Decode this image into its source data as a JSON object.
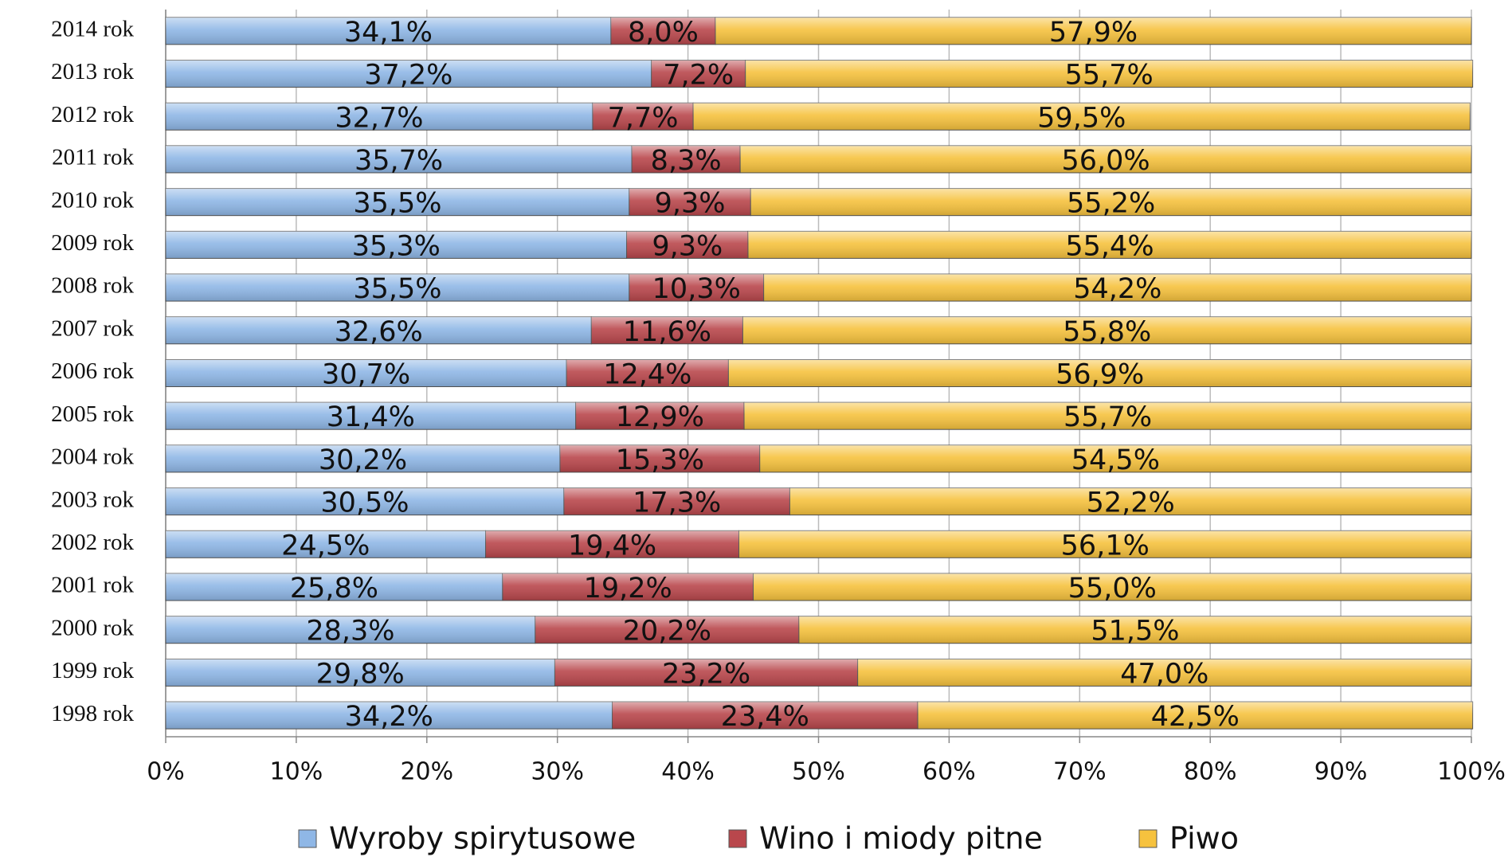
{
  "chart_data": {
    "type": "bar",
    "orientation": "horizontal",
    "stacked": true,
    "categories": [
      "2014 rok",
      "2013 rok",
      "2012 rok",
      "2011 rok",
      "2010 rok",
      "2009 rok",
      "2008 rok",
      "2007 rok",
      "2006 rok",
      "2005 rok",
      "2004 rok",
      "2003 rok",
      "2002 rok",
      "2001 rok",
      "2000 rok",
      "1999 rok",
      "1998 rok"
    ],
    "series": [
      {
        "name": "Wyroby spirytusowe",
        "color": "#8fb7e6",
        "values": [
          34.1,
          37.2,
          32.7,
          35.7,
          35.5,
          35.3,
          35.5,
          32.6,
          30.7,
          31.4,
          30.2,
          30.5,
          24.5,
          25.8,
          28.3,
          29.8,
          34.2
        ],
        "value_labels": [
          "34,1%",
          "37,2%",
          "32,7%",
          "35,7%",
          "35,5%",
          "35,3%",
          "35,5%",
          "32,6%",
          "30,7%",
          "31,4%",
          "30,2%",
          "30,5%",
          "24,5%",
          "25,8%",
          "28,3%",
          "29,8%",
          "34,2%"
        ]
      },
      {
        "name": "Wino i miody pitne",
        "color": "#b9474c",
        "values": [
          8.0,
          7.2,
          7.7,
          8.3,
          9.3,
          9.3,
          10.3,
          11.6,
          12.4,
          12.9,
          15.3,
          17.3,
          19.4,
          19.2,
          20.2,
          23.2,
          23.4
        ],
        "value_labels": [
          "8,0%",
          "7,2%",
          "7,7%",
          "8,3%",
          "9,3%",
          "9,3%",
          "10,3%",
          "11,6%",
          "12,4%",
          "12,9%",
          "15,3%",
          "17,3%",
          "19,4%",
          "19,2%",
          "20,2%",
          "23,2%",
          "23,4%"
        ]
      },
      {
        "name": "Piwo",
        "color": "#f6c23e",
        "values": [
          57.9,
          55.7,
          59.5,
          56.0,
          55.2,
          55.4,
          54.2,
          55.8,
          56.9,
          55.7,
          54.5,
          52.2,
          56.1,
          55.0,
          51.5,
          47.0,
          42.5
        ],
        "value_labels": [
          "57,9%",
          "55,7%",
          "59,5%",
          "56,0%",
          "55,2%",
          "55,4%",
          "54,2%",
          "55,8%",
          "56,9%",
          "55,7%",
          "54,5%",
          "52,2%",
          "56,1%",
          "55,0%",
          "51,5%",
          "47,0%",
          "42,5%"
        ]
      }
    ],
    "xlim": [
      0,
      100
    ],
    "xticks": [
      {
        "value": 0,
        "label": "0%"
      },
      {
        "value": 10,
        "label": "10%"
      },
      {
        "value": 20,
        "label": "20%"
      },
      {
        "value": 30,
        "label": "30%"
      },
      {
        "value": 40,
        "label": "40%"
      },
      {
        "value": 50,
        "label": "50%"
      },
      {
        "value": 60,
        "label": "60%"
      },
      {
        "value": 70,
        "label": "70%"
      },
      {
        "value": 80,
        "label": "80%"
      },
      {
        "value": 90,
        "label": "90%"
      },
      {
        "value": 100,
        "label": "100%"
      }
    ],
    "grid": true,
    "legend": "bottom"
  }
}
